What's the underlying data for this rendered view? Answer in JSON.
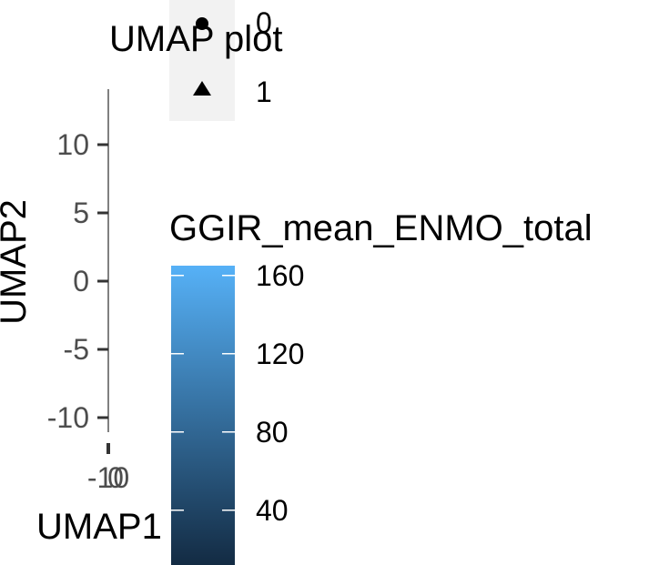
{
  "chart_data": {
    "type": "scatter",
    "title": "UMAP plot",
    "xlabel": "UMAP1",
    "ylabel": "UMAP2",
    "x_ticks": [
      "-10",
      "0"
    ],
    "y_ticks": [
      10,
      5,
      0,
      -5,
      -10
    ],
    "ylim": [
      -12,
      13
    ],
    "series": [],
    "shape_legend": {
      "entries": [
        {
          "label": "0",
          "shape": "circle"
        },
        {
          "label": "1",
          "shape": "triangle"
        }
      ]
    },
    "color_legend": {
      "title": "GGIR_mean_ENMO_total",
      "ticks": [
        160,
        120,
        80,
        40
      ],
      "range": [
        12,
        165
      ],
      "low_color": "#132b43",
      "high_color": "#56b1f7"
    },
    "grid": false,
    "legend_placement": "right"
  }
}
